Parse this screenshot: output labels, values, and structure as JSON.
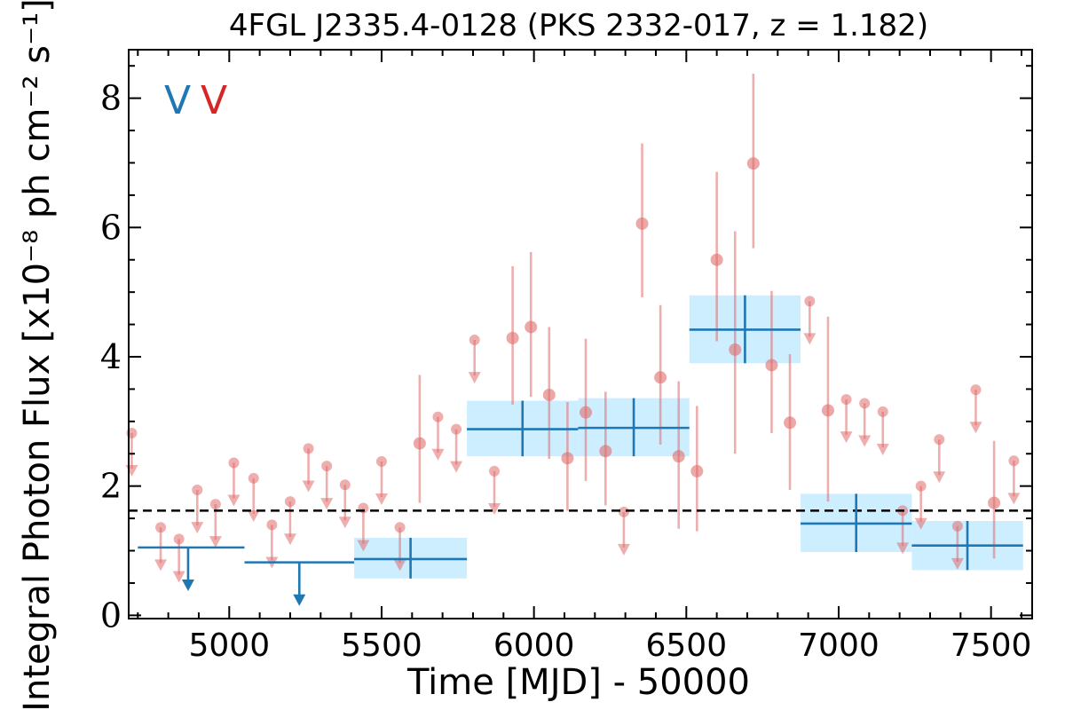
{
  "chart_data": {
    "type": "scatter",
    "title": "4FGL J2335.4-0128 (PKS 2332-017, z = 1.182)",
    "xlabel": "Time [MJD] - 50000",
    "ylabel": "Integral Photon Flux [x10⁻⁸ ph cm⁻² s⁻¹]",
    "xlim": [
      4670,
      7635
    ],
    "ylim": [
      -0.05,
      8.75
    ],
    "xticks": [
      5000,
      5500,
      6000,
      6500,
      7000,
      7500
    ],
    "xtick_labels": [
      "5000",
      "5500",
      "6000",
      "6500",
      "7000",
      "7500"
    ],
    "yticks": [
      0,
      2,
      4,
      6,
      8
    ],
    "ytick_labels": [
      "0",
      "2",
      "4",
      "6",
      "8"
    ],
    "grid": false,
    "legend_marks": [
      {
        "text": "V",
        "color": "#1f77b4"
      },
      {
        "text": "V",
        "color": "#d62728"
      }
    ],
    "reference_line": {
      "y": 1.62,
      "style": "dashed",
      "color": "#000000"
    },
    "series": [
      {
        "color": "#1f77b4",
        "band_color": "#cdeeff",
        "bins": [
          {
            "x_lo": 4700,
            "x_hi": 5050,
            "y": 1.05,
            "upper_limit": true,
            "arrow_x": 4865
          },
          {
            "x_lo": 5050,
            "x_hi": 5410,
            "y": 0.82,
            "upper_limit": true,
            "arrow_x": 5230
          },
          {
            "x_lo": 5410,
            "x_hi": 5780,
            "y": 0.87,
            "y_lo": 0.57,
            "y_hi": 1.2,
            "upper_limit": false
          },
          {
            "x_lo": 5780,
            "x_hi": 6145,
            "y": 2.88,
            "y_lo": 2.46,
            "y_hi": 3.32,
            "upper_limit": false
          },
          {
            "x_lo": 6145,
            "x_hi": 6510,
            "y": 2.9,
            "y_lo": 2.46,
            "y_hi": 3.36,
            "upper_limit": false
          },
          {
            "x_lo": 6510,
            "x_hi": 6875,
            "y": 4.42,
            "y_lo": 3.9,
            "y_hi": 4.95,
            "upper_limit": false
          },
          {
            "x_lo": 6875,
            "x_hi": 7240,
            "y": 1.42,
            "y_lo": 0.98,
            "y_hi": 1.88,
            "upper_limit": false
          },
          {
            "x_lo": 7240,
            "x_hi": 7605,
            "y": 1.08,
            "y_lo": 0.7,
            "y_hi": 1.46,
            "upper_limit": false
          }
        ]
      },
      {
        "color": "#e06c6c",
        "points": [
          {
            "x": 4680,
            "y": 2.82,
            "upper_limit": true
          },
          {
            "x": 4775,
            "y": 1.36,
            "upper_limit": true
          },
          {
            "x": 4835,
            "y": 1.18,
            "upper_limit": true
          },
          {
            "x": 4895,
            "y": 1.94,
            "upper_limit": true
          },
          {
            "x": 4955,
            "y": 1.72,
            "upper_limit": true
          },
          {
            "x": 5015,
            "y": 2.36,
            "upper_limit": true
          },
          {
            "x": 5080,
            "y": 2.12,
            "upper_limit": true
          },
          {
            "x": 5140,
            "y": 1.4,
            "upper_limit": true
          },
          {
            "x": 5200,
            "y": 1.76,
            "upper_limit": true
          },
          {
            "x": 5260,
            "y": 2.58,
            "upper_limit": true
          },
          {
            "x": 5320,
            "y": 2.31,
            "upper_limit": true
          },
          {
            "x": 5380,
            "y": 2.02,
            "upper_limit": true
          },
          {
            "x": 5440,
            "y": 1.66,
            "upper_limit": true
          },
          {
            "x": 5500,
            "y": 2.38,
            "upper_limit": true
          },
          {
            "x": 5560,
            "y": 1.36,
            "upper_limit": true
          },
          {
            "x": 5625,
            "y": 2.66,
            "err_lo": 1.74,
            "err_hi": 3.72,
            "upper_limit": false
          },
          {
            "x": 5685,
            "y": 3.07,
            "upper_limit": true
          },
          {
            "x": 5745,
            "y": 2.88,
            "upper_limit": true
          },
          {
            "x": 5805,
            "y": 4.26,
            "upper_limit": true
          },
          {
            "x": 5870,
            "y": 2.23,
            "upper_limit": true
          },
          {
            "x": 5930,
            "y": 4.29,
            "err_lo": 3.26,
            "err_hi": 5.4,
            "upper_limit": false
          },
          {
            "x": 5990,
            "y": 4.46,
            "err_lo": 3.38,
            "err_hi": 5.62,
            "upper_limit": false
          },
          {
            "x": 6050,
            "y": 3.41,
            "err_lo": 2.42,
            "err_hi": 4.46,
            "upper_limit": false
          },
          {
            "x": 6110,
            "y": 2.43,
            "err_lo": 1.62,
            "err_hi": 3.3,
            "upper_limit": false
          },
          {
            "x": 6170,
            "y": 3.14,
            "err_lo": 2.08,
            "err_hi": 4.28,
            "upper_limit": false
          },
          {
            "x": 6235,
            "y": 2.54,
            "err_lo": 1.7,
            "err_hi": 3.46,
            "upper_limit": false
          },
          {
            "x": 6295,
            "y": 1.6,
            "upper_limit": true
          },
          {
            "x": 6355,
            "y": 6.06,
            "err_lo": 4.92,
            "err_hi": 7.3,
            "upper_limit": false
          },
          {
            "x": 6415,
            "y": 3.68,
            "err_lo": 2.64,
            "err_hi": 4.8,
            "upper_limit": false
          },
          {
            "x": 6475,
            "y": 2.46,
            "err_lo": 1.34,
            "err_hi": 3.62,
            "upper_limit": false
          },
          {
            "x": 6535,
            "y": 2.23,
            "err_lo": 1.3,
            "err_hi": 3.24,
            "upper_limit": false
          },
          {
            "x": 6600,
            "y": 5.5,
            "err_lo": 4.24,
            "err_hi": 6.86,
            "upper_limit": false
          },
          {
            "x": 6660,
            "y": 4.11,
            "err_lo": 2.5,
            "err_hi": 5.94,
            "upper_limit": false
          },
          {
            "x": 6720,
            "y": 6.99,
            "err_lo": 5.68,
            "err_hi": 8.38,
            "upper_limit": false
          },
          {
            "x": 6780,
            "y": 3.87,
            "err_lo": 2.82,
            "err_hi": 5.02,
            "upper_limit": false
          },
          {
            "x": 6840,
            "y": 2.98,
            "err_lo": 1.94,
            "err_hi": 4.04,
            "upper_limit": false
          },
          {
            "x": 6905,
            "y": 4.86,
            "upper_limit": true
          },
          {
            "x": 6965,
            "y": 3.17,
            "err_lo": 1.76,
            "err_hi": 4.62,
            "upper_limit": false
          },
          {
            "x": 7025,
            "y": 3.34,
            "upper_limit": true
          },
          {
            "x": 7085,
            "y": 3.28,
            "upper_limit": true
          },
          {
            "x": 7145,
            "y": 3.15,
            "upper_limit": true
          },
          {
            "x": 7210,
            "y": 1.62,
            "upper_limit": true
          },
          {
            "x": 7270,
            "y": 2.0,
            "upper_limit": true
          },
          {
            "x": 7330,
            "y": 2.72,
            "upper_limit": true
          },
          {
            "x": 7390,
            "y": 1.38,
            "upper_limit": true
          },
          {
            "x": 7450,
            "y": 3.49,
            "upper_limit": true
          },
          {
            "x": 7510,
            "y": 1.74,
            "err_lo": 0.88,
            "err_hi": 2.7,
            "upper_limit": false
          },
          {
            "x": 7575,
            "y": 2.39,
            "upper_limit": true
          }
        ]
      }
    ]
  }
}
